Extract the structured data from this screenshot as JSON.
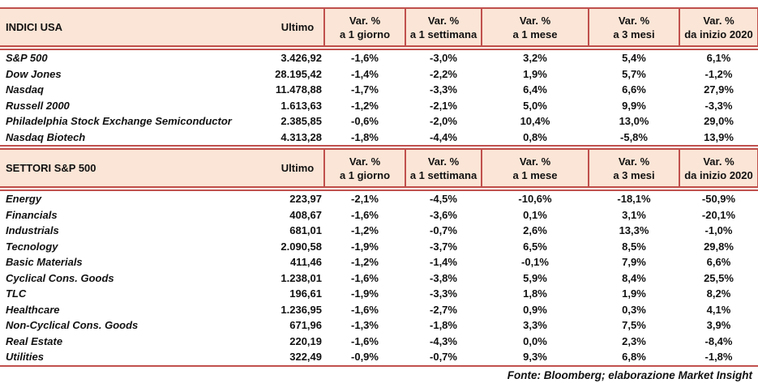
{
  "colors": {
    "rule_red": "#c0504d",
    "header_bg": "#fbe5d6",
    "text": "#111111"
  },
  "header": {
    "ultimo_label": "Ultimo",
    "var_label": "Var. %",
    "periods": [
      "a 1 giorno",
      "a 1 settimana",
      "a 1 mese",
      "a 3 mesi",
      "da inizio 2020"
    ]
  },
  "tables": [
    {
      "title": "INDICI USA",
      "rows": [
        {
          "label": "S&P 500",
          "ultimo": "3.426,92",
          "vars": [
            "-1,6%",
            "-3,0%",
            "3,2%",
            "5,4%",
            "6,1%"
          ]
        },
        {
          "label": "Dow Jones",
          "ultimo": "28.195,42",
          "vars": [
            "-1,4%",
            "-2,2%",
            "1,9%",
            "5,7%",
            "-1,2%"
          ]
        },
        {
          "label": "Nasdaq",
          "ultimo": "11.478,88",
          "vars": [
            "-1,7%",
            "-3,3%",
            "6,4%",
            "6,6%",
            "27,9%"
          ]
        },
        {
          "label": "Russell 2000",
          "ultimo": "1.613,63",
          "vars": [
            "-1,2%",
            "-2,1%",
            "5,0%",
            "9,9%",
            "-3,3%"
          ]
        },
        {
          "label": "Philadelphia Stock Exchange Semiconductor",
          "ultimo": "2.385,85",
          "vars": [
            "-0,6%",
            "-2,0%",
            "10,4%",
            "13,0%",
            "29,0%"
          ]
        },
        {
          "label": "Nasdaq Biotech",
          "ultimo": "4.313,28",
          "vars": [
            "-1,8%",
            "-4,4%",
            "0,8%",
            "-5,8%",
            "13,9%"
          ]
        }
      ]
    },
    {
      "title": "SETTORI S&P 500",
      "rows": [
        {
          "label": "Energy",
          "ultimo": "223,97",
          "vars": [
            "-2,1%",
            "-4,5%",
            "-10,6%",
            "-18,1%",
            "-50,9%"
          ]
        },
        {
          "label": "Financials",
          "ultimo": "408,67",
          "vars": [
            "-1,6%",
            "-3,6%",
            "0,1%",
            "3,1%",
            "-20,1%"
          ]
        },
        {
          "label": "Industrials",
          "ultimo": "681,01",
          "vars": [
            "-1,2%",
            "-0,7%",
            "2,6%",
            "13,3%",
            "-1,0%"
          ]
        },
        {
          "label": "Tecnology",
          "ultimo": "2.090,58",
          "vars": [
            "-1,9%",
            "-3,7%",
            "6,5%",
            "8,5%",
            "29,8%"
          ]
        },
        {
          "label": "Basic Materials",
          "ultimo": "411,46",
          "vars": [
            "-1,2%",
            "-1,4%",
            "-0,1%",
            "7,9%",
            "6,6%"
          ]
        },
        {
          "label": "Cyclical Cons. Goods",
          "ultimo": "1.238,01",
          "vars": [
            "-1,6%",
            "-3,8%",
            "5,9%",
            "8,4%",
            "25,5%"
          ]
        },
        {
          "label": "TLC",
          "ultimo": "196,61",
          "vars": [
            "-1,9%",
            "-3,3%",
            "1,8%",
            "1,9%",
            "8,2%"
          ]
        },
        {
          "label": "Healthcare",
          "ultimo": "1.236,95",
          "vars": [
            "-1,6%",
            "-2,7%",
            "0,9%",
            "0,3%",
            "4,1%"
          ]
        },
        {
          "label": "Non-Cyclical Cons. Goods",
          "ultimo": "671,96",
          "vars": [
            "-1,3%",
            "-1,8%",
            "3,3%",
            "7,5%",
            "3,9%"
          ]
        },
        {
          "label": "Real Estate",
          "ultimo": "220,19",
          "vars": [
            "-1,6%",
            "-4,3%",
            "0,0%",
            "2,3%",
            "-8,4%"
          ]
        },
        {
          "label": "Utilities",
          "ultimo": "322,49",
          "vars": [
            "-0,9%",
            "-0,7%",
            "9,3%",
            "6,8%",
            "-1,8%"
          ]
        }
      ]
    }
  ],
  "footer": "Fonte: Bloomberg; elaborazione Market Insight"
}
